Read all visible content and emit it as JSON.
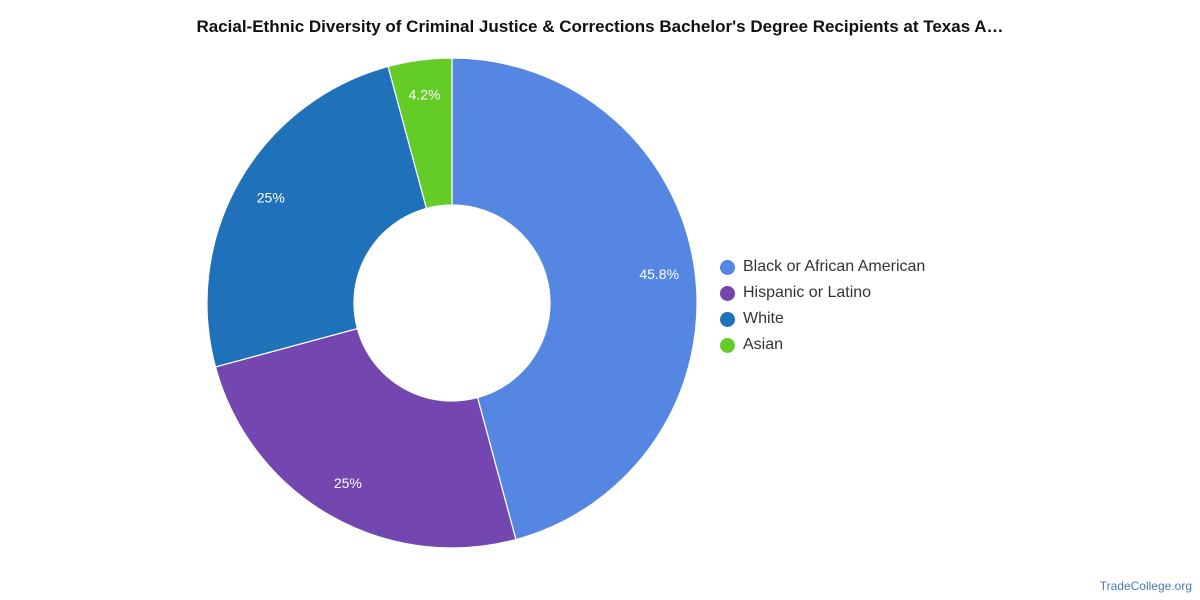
{
  "chart_data": {
    "type": "pie",
    "variant": "donut",
    "title": "Racial-Ethnic Diversity of Criminal Justice & Corrections Bachelor's Degree Recipients at Texas A…",
    "slices": [
      {
        "name": "Black or African American",
        "value": 45.8,
        "label": "45.8%",
        "color": "#5486e2"
      },
      {
        "name": "Hispanic or Latino",
        "value": 25,
        "label": "25%",
        "color": "#7447b0"
      },
      {
        "name": "White",
        "value": 25,
        "label": "25%",
        "color": "#1f72b9"
      },
      {
        "name": "Asian",
        "value": 4.2,
        "label": "4.2%",
        "color": "#63cc26"
      }
    ],
    "legend_position": "right"
  },
  "watermark": "TradeCollege.org"
}
